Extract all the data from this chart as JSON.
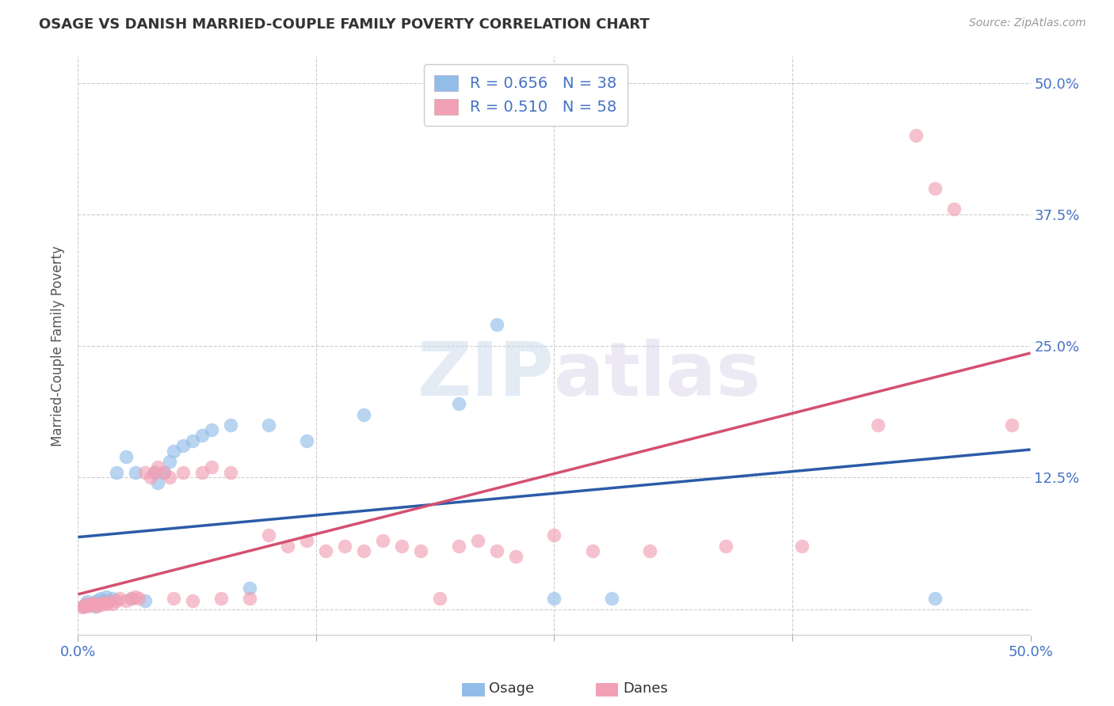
{
  "title": "OSAGE VS DANISH MARRIED-COUPLE FAMILY POVERTY CORRELATION CHART",
  "source": "Source: ZipAtlas.com",
  "ylabel": "Married-Couple Family Poverty",
  "xlim": [
    0.0,
    0.5
  ],
  "ylim": [
    -0.025,
    0.525
  ],
  "xticks": [
    0.0,
    0.125,
    0.25,
    0.375,
    0.5
  ],
  "xticklabels": [
    "0.0%",
    "",
    "",
    "",
    "50.0%"
  ],
  "ytick_positions": [
    0.0,
    0.125,
    0.25,
    0.375,
    0.5
  ],
  "ytick_labels_right": [
    "",
    "12.5%",
    "25.0%",
    "37.5%",
    "50.0%"
  ],
  "osage_color": "#92BDE8",
  "danes_color": "#F2A0B5",
  "osage_line_color": "#2B5BA8",
  "danes_line_color": "#D45070",
  "label_color": "#4472C4",
  "background_color": "#FFFFFF",
  "grid_color": "#CCCCCC",
  "osage_points": [
    [
      0.003,
      0.003
    ],
    [
      0.004,
      0.005
    ],
    [
      0.005,
      0.007
    ],
    [
      0.006,
      0.004
    ],
    [
      0.007,
      0.005
    ],
    [
      0.008,
      0.006
    ],
    [
      0.009,
      0.003
    ],
    [
      0.01,
      0.008
    ],
    [
      0.011,
      0.005
    ],
    [
      0.012,
      0.01
    ],
    [
      0.013,
      0.007
    ],
    [
      0.015,
      0.012
    ],
    [
      0.016,
      0.008
    ],
    [
      0.018,
      0.01
    ],
    [
      0.02,
      0.13
    ],
    [
      0.025,
      0.145
    ],
    [
      0.028,
      0.01
    ],
    [
      0.03,
      0.13
    ],
    [
      0.035,
      0.008
    ],
    [
      0.04,
      0.13
    ],
    [
      0.042,
      0.12
    ],
    [
      0.045,
      0.13
    ],
    [
      0.048,
      0.14
    ],
    [
      0.05,
      0.15
    ],
    [
      0.055,
      0.155
    ],
    [
      0.06,
      0.16
    ],
    [
      0.065,
      0.165
    ],
    [
      0.07,
      0.17
    ],
    [
      0.08,
      0.175
    ],
    [
      0.09,
      0.02
    ],
    [
      0.1,
      0.175
    ],
    [
      0.12,
      0.16
    ],
    [
      0.15,
      0.185
    ],
    [
      0.2,
      0.195
    ],
    [
      0.22,
      0.27
    ],
    [
      0.25,
      0.01
    ],
    [
      0.28,
      0.01
    ],
    [
      0.45,
      0.01
    ]
  ],
  "danes_points": [
    [
      0.002,
      0.002
    ],
    [
      0.003,
      0.003
    ],
    [
      0.004,
      0.004
    ],
    [
      0.005,
      0.003
    ],
    [
      0.006,
      0.005
    ],
    [
      0.007,
      0.004
    ],
    [
      0.008,
      0.006
    ],
    [
      0.009,
      0.005
    ],
    [
      0.01,
      0.003
    ],
    [
      0.011,
      0.005
    ],
    [
      0.012,
      0.004
    ],
    [
      0.013,
      0.006
    ],
    [
      0.015,
      0.005
    ],
    [
      0.016,
      0.007
    ],
    [
      0.018,
      0.005
    ],
    [
      0.02,
      0.008
    ],
    [
      0.022,
      0.01
    ],
    [
      0.025,
      0.008
    ],
    [
      0.028,
      0.01
    ],
    [
      0.03,
      0.012
    ],
    [
      0.032,
      0.01
    ],
    [
      0.035,
      0.13
    ],
    [
      0.038,
      0.125
    ],
    [
      0.04,
      0.13
    ],
    [
      0.042,
      0.135
    ],
    [
      0.045,
      0.13
    ],
    [
      0.048,
      0.125
    ],
    [
      0.05,
      0.01
    ],
    [
      0.055,
      0.13
    ],
    [
      0.06,
      0.008
    ],
    [
      0.065,
      0.13
    ],
    [
      0.07,
      0.135
    ],
    [
      0.075,
      0.01
    ],
    [
      0.08,
      0.13
    ],
    [
      0.09,
      0.01
    ],
    [
      0.1,
      0.07
    ],
    [
      0.11,
      0.06
    ],
    [
      0.12,
      0.065
    ],
    [
      0.13,
      0.055
    ],
    [
      0.14,
      0.06
    ],
    [
      0.15,
      0.055
    ],
    [
      0.16,
      0.065
    ],
    [
      0.17,
      0.06
    ],
    [
      0.18,
      0.055
    ],
    [
      0.19,
      0.01
    ],
    [
      0.2,
      0.06
    ],
    [
      0.21,
      0.065
    ],
    [
      0.22,
      0.055
    ],
    [
      0.23,
      0.05
    ],
    [
      0.25,
      0.07
    ],
    [
      0.27,
      0.055
    ],
    [
      0.3,
      0.055
    ],
    [
      0.34,
      0.06
    ],
    [
      0.38,
      0.06
    ],
    [
      0.42,
      0.175
    ],
    [
      0.44,
      0.45
    ],
    [
      0.45,
      0.4
    ],
    [
      0.46,
      0.38
    ],
    [
      0.49,
      0.175
    ]
  ]
}
